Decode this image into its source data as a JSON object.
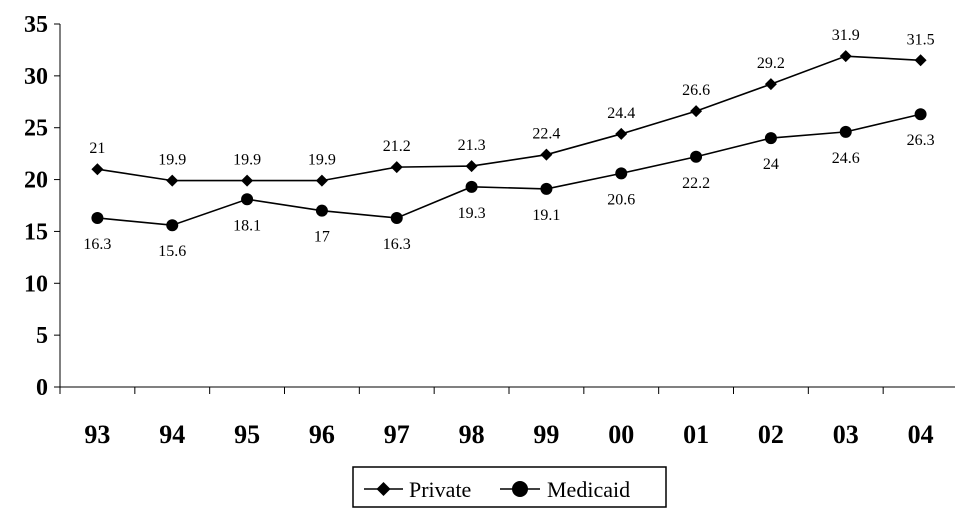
{
  "chart_data": {
    "type": "line",
    "categories": [
      "93",
      "94",
      "95",
      "96",
      "97",
      "98",
      "99",
      "00",
      "01",
      "02",
      "03",
      "04"
    ],
    "ylim": [
      0,
      35
    ],
    "yticks": [
      0,
      5,
      10,
      15,
      20,
      25,
      30,
      35
    ],
    "grid": false,
    "legend_position": "bottom",
    "series": [
      {
        "name": "Private",
        "marker": "diamond",
        "color": "#000000",
        "label_position": "above",
        "values": [
          21,
          19.9,
          19.9,
          19.9,
          21.2,
          21.3,
          22.4,
          24.4,
          26.6,
          29.2,
          31.9,
          31.5
        ],
        "labels": [
          "21",
          "19.9",
          "19.9",
          "19.9",
          "21.2",
          "21.3",
          "22.4",
          "24.4",
          "26.6",
          "29.2",
          "31.9",
          "31.5"
        ]
      },
      {
        "name": "Medicaid",
        "marker": "circle",
        "color": "#000000",
        "label_position": "below",
        "values": [
          16.3,
          15.6,
          18.1,
          17,
          16.3,
          19.3,
          19.1,
          20.6,
          22.2,
          24,
          24.6,
          26.3
        ],
        "labels": [
          "16.3",
          "15.6",
          "18.1",
          "17",
          "16.3",
          "19.3",
          "19.1",
          "20.6",
          "22.2",
          "24",
          "24.6",
          "26.3"
        ]
      }
    ]
  }
}
